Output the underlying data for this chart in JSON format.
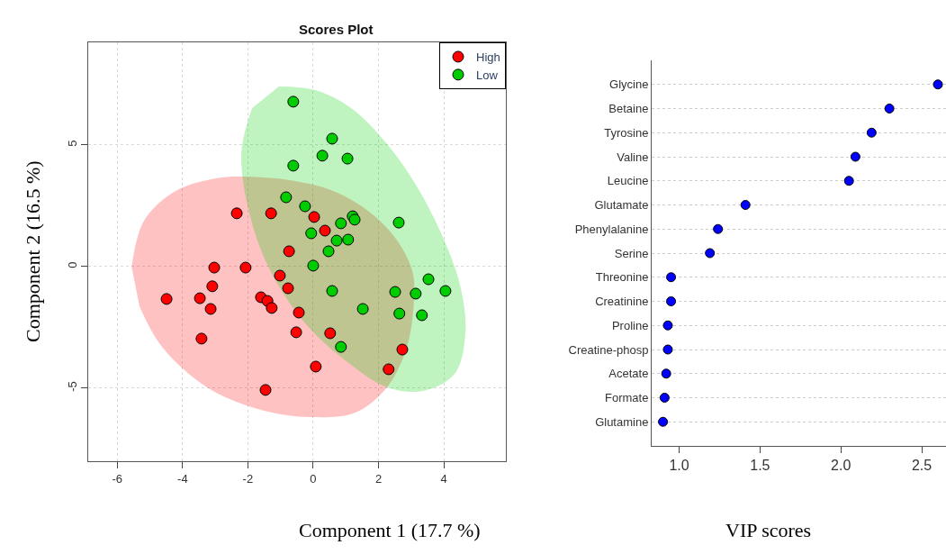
{
  "chart_data": [
    {
      "type": "scatter",
      "title": "Scores Plot",
      "xlabel": "Component 1 (17.7 %)",
      "ylabel": "Component 2 (16.5 %)",
      "xlim": [
        -6.89,
        5.9
      ],
      "ylim": [
        -8.0,
        9.22
      ],
      "xticks": [
        -6,
        -4,
        -2,
        0,
        2,
        4
      ],
      "yticks": [
        -5,
        0,
        5
      ],
      "grid": true,
      "legend": "top right",
      "series": [
        {
          "type": "area",
          "marker": "none",
          "color": "#ffc2c2",
          "x": [
            -5.56,
            -5.18,
            -4.21,
            -2.98,
            -2.23,
            -0.77,
            0.61,
            1.71,
            2.53,
            3.03,
            3.09,
            2.87,
            2.26,
            1.29,
            -0.08,
            -1.6,
            -3.25,
            -4.63,
            -5.32
          ],
          "values": [
            0,
            1.89,
            3.11,
            3.63,
            3.7,
            3.56,
            3.11,
            2.26,
            1.15,
            -0.15,
            -1.26,
            -3.3,
            -4.96,
            -6.0,
            -6.19,
            -5.89,
            -4.96,
            -3.3,
            -1.63
          ]
        },
        {
          "type": "area",
          "marker": "none",
          "color": "#bff3bf",
          "x": [
            -1.05,
            0.06,
            1.16,
            2.26,
            3.22,
            4.05,
            4.52,
            4.66,
            4.33,
            3.36,
            2.26,
            1.16,
            -0.22,
            -1.32,
            -1.93,
            -2.2,
            -1.87
          ],
          "values": [
            7.41,
            7.26,
            6.52,
            5.04,
            3.19,
            0.96,
            -0.89,
            -2.74,
            -4.41,
            -5.11,
            -4.96,
            -4.04,
            -2.37,
            -0.15,
            2.07,
            4.67,
            6.52
          ]
        },
        {
          "name": "High",
          "marker": "circle",
          "color": "#ff0000",
          "x": [
            -4.49,
            -3.47,
            -3.14,
            -3.09,
            -3.03,
            -3.42,
            -2.34,
            -2.07,
            -1.29,
            -1.6,
            -1.4,
            -1.27,
            -1.02,
            -0.77,
            -0.74,
            -0.44,
            -0.52,
            0.03,
            0.36,
            0.52,
            0.08,
            -1.46,
            2.31,
            2.73
          ],
          "values": [
            -1.33,
            -1.3,
            -1.74,
            -0.81,
            -0.04,
            -2.96,
            2.19,
            -0.04,
            2.19,
            -1.26,
            -1.41,
            -1.7,
            -0.37,
            -0.89,
            0.63,
            -1.89,
            -2.7,
            2.04,
            1.48,
            -2.74,
            -4.11,
            -5.07,
            -4.22,
            -3.41
          ]
        },
        {
          "name": "Low",
          "marker": "circle",
          "color": "#00cd00",
          "x": [
            -0.61,
            0.58,
            0.28,
            1.05,
            -0.61,
            -0.83,
            -0.25,
            1.21,
            1.27,
            0.85,
            2.62,
            -0.06,
            0.72,
            1.07,
            0.47,
            0.0,
            0.58,
            2.51,
            3.14,
            3.53,
            4.05,
            1.52,
            2.64,
            3.33,
            0.85
          ],
          "values": [
            6.78,
            5.26,
            4.56,
            4.44,
            4.15,
            2.85,
            2.48,
            2.07,
            1.93,
            1.78,
            1.81,
            1.37,
            1.07,
            1.11,
            0.63,
            0.04,
            -1.0,
            -1.04,
            -1.11,
            -0.52,
            -1.0,
            -1.74,
            -1.93,
            -2.0,
            -3.3
          ]
        }
      ]
    },
    {
      "type": "scatter",
      "orientation": "horizontal",
      "xlabel": "VIP scores",
      "xlim": [
        0.83,
        2.65
      ],
      "xticks": [
        {
          "value": 1.0,
          "label": "1.0"
        },
        {
          "value": 1.5,
          "label": "1.5"
        },
        {
          "value": 2.0,
          "label": "2.0"
        },
        {
          "value": 2.5,
          "label": "2.5"
        }
      ],
      "grid": "y",
      "marker": "circle",
      "color": "#0000ff",
      "categories": [
        "Glycine",
        "Betaine",
        "Tyrosine",
        "Valine",
        "Leucine",
        "Glutamate",
        "Phenylalanine",
        "Serine",
        "Threonine",
        "Creatinine",
        "Proline",
        "Creatine-phosp",
        "Acetate",
        "Formate",
        "Glutamine"
      ],
      "values": [
        2.6,
        2.3,
        2.19,
        2.09,
        2.05,
        1.41,
        1.24,
        1.19,
        0.95,
        0.95,
        0.93,
        0.93,
        0.92,
        0.91,
        0.9
      ]
    }
  ]
}
